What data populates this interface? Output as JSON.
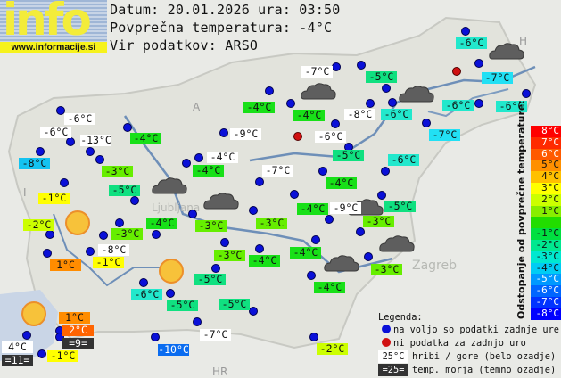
{
  "logo": {
    "text": "info",
    "site": "www.informacije.si"
  },
  "header": {
    "date_line": "Datum: 20.01.2026 ura: 03:50",
    "avg_line": "Povprečna temperatura: -4°C",
    "source_line": "Vir podatkov: ARSO"
  },
  "map_labels": {
    "ljubljana": "Ljubljana",
    "zagreb": "Zagreb",
    "hr": "HR",
    "a": "A",
    "i": "I",
    "h": "H"
  },
  "stations": [
    {
      "temp": "-6°C",
      "bg": "#ffffff"
    },
    {
      "temp": "-6°C",
      "bg": "#ffffff"
    },
    {
      "temp": "-13°C",
      "bg": "#ffffff"
    },
    {
      "temp": "-8°C",
      "bg": "#14c3f0"
    },
    {
      "temp": "-3°C",
      "bg": "#66ee00"
    },
    {
      "temp": "-4°C",
      "bg": "#18e018"
    },
    {
      "temp": "-1°C",
      "bg": "#ffff00"
    },
    {
      "temp": "-5°C",
      "bg": "#10e080"
    },
    {
      "temp": "-2°C",
      "bg": "#ccff00"
    },
    {
      "temp": "-3°C",
      "bg": "#66ee00"
    },
    {
      "temp": "-4°C",
      "bg": "#18e018"
    },
    {
      "temp": "-8°C",
      "bg": "#ffffff"
    },
    {
      "temp": "1°C",
      "bg": "#ff8c00"
    },
    {
      "temp": "-1°C",
      "bg": "#ffff00"
    },
    {
      "temp": "-7°C",
      "bg": "#ffffff"
    },
    {
      "temp": "-4°C",
      "bg": "#18e018"
    },
    {
      "temp": "-4°C",
      "bg": "#18e018"
    },
    {
      "temp": "-8°C",
      "bg": "#ffffff"
    },
    {
      "temp": "-6°C",
      "bg": "#ffffff"
    },
    {
      "temp": "-9°C",
      "bg": "#ffffff"
    },
    {
      "temp": "-4°C",
      "bg": "#ffffff"
    },
    {
      "temp": "-4°C",
      "bg": "#18e018"
    },
    {
      "temp": "-5°C",
      "bg": "#10e080"
    },
    {
      "temp": "-7°C",
      "bg": "#ffffff"
    },
    {
      "temp": "-4°C",
      "bg": "#18e018"
    },
    {
      "temp": "-4°C",
      "bg": "#18e018"
    },
    {
      "temp": "-9°C",
      "bg": "#ffffff"
    },
    {
      "temp": "-6°C",
      "bg": "#22e8cc"
    },
    {
      "temp": "-7°C",
      "bg": "#22e0f4"
    },
    {
      "temp": "-6°C",
      "bg": "#22e8cc"
    },
    {
      "temp": "-6°C",
      "bg": "#22e8cc"
    },
    {
      "temp": "-5°C",
      "bg": "#10e080"
    },
    {
      "temp": "-6°C",
      "bg": "#22e8cc"
    },
    {
      "temp": "-7°C",
      "bg": "#22e0f4"
    },
    {
      "temp": "-6°C",
      "bg": "#22e8cc"
    },
    {
      "temp": "-5°C",
      "bg": "#10e080"
    },
    {
      "temp": "-3°C",
      "bg": "#66ee00"
    },
    {
      "temp": "-3°C",
      "bg": "#66ee00"
    },
    {
      "temp": "-3°C",
      "bg": "#66ee00"
    },
    {
      "temp": "-4°C",
      "bg": "#18e018"
    },
    {
      "temp": "-3°C",
      "bg": "#66ee00"
    },
    {
      "temp": "-4°C",
      "bg": "#18e018"
    },
    {
      "temp": "-3°C",
      "bg": "#66ee00"
    },
    {
      "temp": "-5°C",
      "bg": "#10e080"
    },
    {
      "temp": "-4°C",
      "bg": "#18e018"
    },
    {
      "temp": "-5°C",
      "bg": "#10e080"
    },
    {
      "temp": "-7°C",
      "bg": "#ffffff"
    },
    {
      "temp": "-2°C",
      "bg": "#ccff00"
    },
    {
      "temp": "-6°C",
      "bg": "#22e8cc"
    },
    {
      "temp": "-5°C",
      "bg": "#10e080"
    },
    {
      "temp": "-10°C",
      "bg": "#0a6cf0",
      "fg": "#ffffff"
    },
    {
      "temp": "1°C",
      "bg": "#ff8c00"
    },
    {
      "temp": "2°C",
      "bg": "#ff6400",
      "fg": "#ffffff"
    },
    {
      "temp": "=9=",
      "bg": "#333333",
      "fg": "#ffffff"
    },
    {
      "temp": "4°C",
      "bg": "#ffffff"
    },
    {
      "temp": "=11=",
      "bg": "#333333",
      "fg": "#ffffff"
    },
    {
      "temp": "-1°C",
      "bg": "#ffff00"
    }
  ],
  "scale": {
    "title": "Odstopanje od povprečne temperature:",
    "rows": [
      {
        "label": "8°C",
        "bg": "#ff0000",
        "fg": "#ffffff"
      },
      {
        "label": "7°C",
        "bg": "#ff2a00",
        "fg": "#ffffff"
      },
      {
        "label": "6°C",
        "bg": "#ff5a00",
        "fg": "#ffffff"
      },
      {
        "label": "5°C",
        "bg": "#ff9000",
        "fg": "#111111"
      },
      {
        "label": "4°C",
        "bg": "#ffc000",
        "fg": "#111111"
      },
      {
        "label": "3°C",
        "bg": "#ffff00",
        "fg": "#111111"
      },
      {
        "label": "2°C",
        "bg": "#ccff00",
        "fg": "#111111"
      },
      {
        "label": "1°C",
        "bg": "#88ee00",
        "fg": "#111111"
      },
      {
        "label": "",
        "bg": "#22dd00",
        "fg": "#111111"
      },
      {
        "label": "-1°C",
        "bg": "#00e040",
        "fg": "#111111"
      },
      {
        "label": "-2°C",
        "bg": "#00e890",
        "fg": "#111111"
      },
      {
        "label": "-3°C",
        "bg": "#00e8d0",
        "fg": "#111111"
      },
      {
        "label": "-4°C",
        "bg": "#00ccf4",
        "fg": "#111111"
      },
      {
        "label": "-5°C",
        "bg": "#0099ff",
        "fg": "#ffffff"
      },
      {
        "label": "-6°C",
        "bg": "#0066ff",
        "fg": "#ffffff"
      },
      {
        "label": "-7°C",
        "bg": "#0033ff",
        "fg": "#ffffff"
      },
      {
        "label": "-8°C",
        "bg": "#0000ff",
        "fg": "#ffffff"
      }
    ]
  },
  "legend": {
    "title": "Legenda:",
    "available": "na voljo so podatki zadnje ure",
    "no_data": "ni podatka za zadnjo uro",
    "mountain_sample": "25°C",
    "mountain_text": "hribi / gore (belo ozadje)",
    "sea_sample": "=25=",
    "sea_text": "temp. morja (temno ozadje)",
    "available_color": "#0a10d8",
    "no_data_color": "#d01010"
  }
}
